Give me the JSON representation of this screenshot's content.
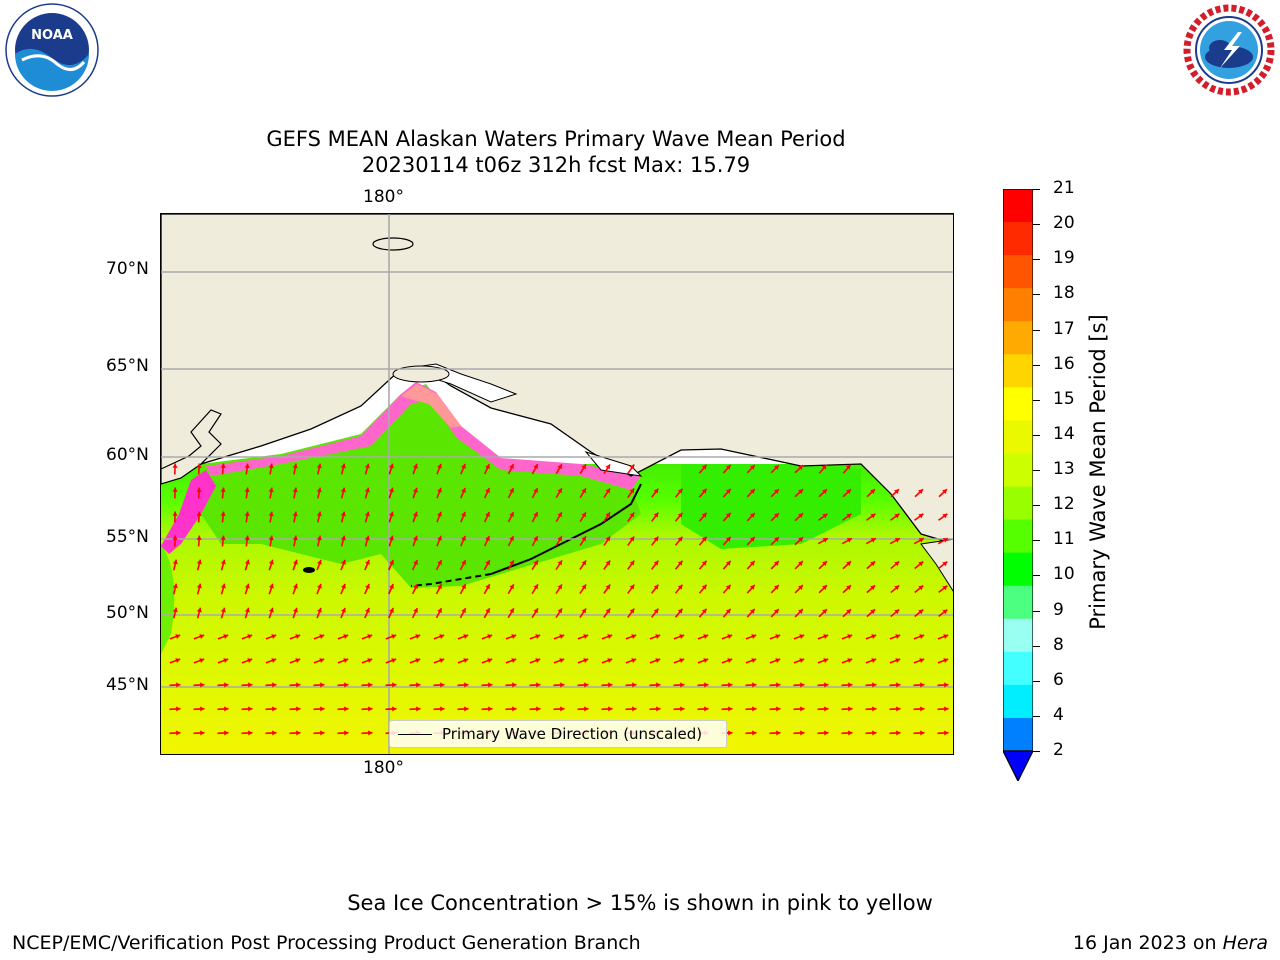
{
  "title": {
    "line1": "GEFS MEAN Alaskan Waters Primary Wave Mean Period",
    "line2": "20230114 t06z 312h fcst   Max: 15.79"
  },
  "logos": {
    "left": "NOAA",
    "right": "NATIONAL WEATHER SERVICE"
  },
  "map": {
    "top_lon_label": "180°",
    "bottom_lon_label": "180°",
    "lat_labels": [
      "70°N",
      "65°N",
      "60°N",
      "55°N",
      "50°N",
      "45°N"
    ],
    "legend_label": "Primary Wave Direction (unscaled)",
    "arrow_color": "#ff0000",
    "land_color": "#efecdb"
  },
  "colorbar": {
    "label": "Primary Wave Mean Period [s]",
    "ticks": [
      "21",
      "20",
      "19",
      "18",
      "17",
      "16",
      "15",
      "14",
      "13",
      "12",
      "11",
      "10",
      "9",
      "8",
      "6",
      "4",
      "2"
    ],
    "colors": [
      "#ff0000",
      "#ff2a00",
      "#ff5500",
      "#ff8000",
      "#ffaa00",
      "#ffd500",
      "#ffff00",
      "#eaf800",
      "#ccff00",
      "#99ff00",
      "#55ff00",
      "#00ff00",
      "#4dff80",
      "#99fff0",
      "#44ffff",
      "#00eeff",
      "#0080ff"
    ],
    "extend_color": "#0000ff"
  },
  "footer": {
    "note": "Sea Ice Concentration > 15% is shown in pink to yellow",
    "left": "NCEP/EMC/Verification Post Processing Product Generation Branch",
    "right_date": "16 Jan 2023 on ",
    "right_machine": "Hera"
  }
}
